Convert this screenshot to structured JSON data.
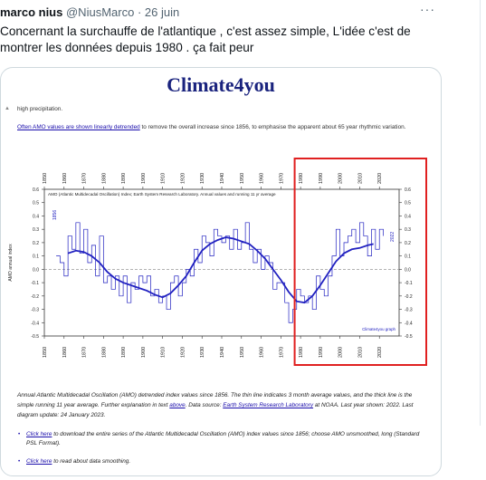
{
  "tweet": {
    "name": "marco nius",
    "handle": "@NiusMarco",
    "separator": "·",
    "date": "26 juin",
    "more": "···",
    "text": "Concernant la surchauffe de l'atlantique , c'est assez simple, L'idée c'est de montrer les données depuis 1980 . ça fait peur"
  },
  "page": {
    "site_title": "Climate4you",
    "collapse_icon": "caret-up-icon",
    "snippet_top": "high precipitation.",
    "snippet_link": "Often AMO values are shown linearly detrended",
    "snippet_rest": " to remove the overall increase since 1856, to emphasise the apparent about 65 year rhythmic variation.",
    "caption_1": "Annual Atlantic Multidecadal Oscillation (AMO) detrended index values since 1856. The thin line indicates 3 month average values, and the thick line is the simple running 11 year average. Further explanation in text ",
    "caption_link_1": "above",
    "caption_2": ". Data source: ",
    "caption_link_2": "Earth System Research Laboratory",
    "caption_3": " at NOAA. Last year shown: 2022. Last diagram update: 24 January 2023.",
    "bullet_1_link": "Click here",
    "bullet_1_text": " to download the entire series of the Atlantic Multidecadal Oscillation (AMO) index values since 1856; choose AMO unsmoothed, long (Standard PSL Format).",
    "bullet_2_link": "Click here",
    "bullet_2_text": " to read about data smoothing."
  },
  "chart_data": {
    "type": "line",
    "title": "AMO (Atlantic Multidecadal Oscillation) Index; Earth System Research Laboratory. Annual values and running 11 yr average",
    "ylabel": "AMO annual index",
    "xlim": [
      1850,
      2030
    ],
    "ylim": [
      -0.5,
      0.6
    ],
    "x_ticks": [
      1850,
      1860,
      1870,
      1880,
      1890,
      1900,
      1910,
      1920,
      1930,
      1940,
      1950,
      1960,
      1970,
      1980,
      1990,
      2000,
      2010,
      2020
    ],
    "y_ticks": [
      -0.5,
      -0.4,
      -0.3,
      -0.2,
      -0.1,
      0.0,
      0.1,
      0.2,
      0.3,
      0.4,
      0.5,
      0.6
    ],
    "y_tick_labels": [
      "-0.5",
      "-0.4",
      "-0.3",
      "-0.2",
      "-0.1",
      "0.0",
      "0.1",
      "0.2",
      "0.3",
      "0.4",
      "0.5",
      "0.6"
    ],
    "label_start": "1856",
    "label_end": "2022",
    "watermark": "Climate4you graph",
    "colors": {
      "series": "#2020c0",
      "highlight": "#e02020",
      "grid": "#999999"
    },
    "highlight_range": [
      1977,
      2030
    ],
    "series": [
      {
        "name": "Annual values",
        "x": [
          1856,
          1858,
          1860,
          1862,
          1864,
          1866,
          1868,
          1870,
          1872,
          1874,
          1876,
          1878,
          1880,
          1882,
          1884,
          1886,
          1888,
          1890,
          1892,
          1894,
          1896,
          1898,
          1900,
          1902,
          1904,
          1906,
          1908,
          1910,
          1912,
          1914,
          1916,
          1918,
          1920,
          1922,
          1924,
          1926,
          1928,
          1930,
          1932,
          1934,
          1936,
          1938,
          1940,
          1942,
          1944,
          1946,
          1948,
          1950,
          1952,
          1954,
          1956,
          1958,
          1960,
          1962,
          1964,
          1966,
          1968,
          1970,
          1972,
          1974,
          1976,
          1978,
          1980,
          1982,
          1984,
          1986,
          1988,
          1990,
          1992,
          1994,
          1996,
          1998,
          2000,
          2002,
          2004,
          2006,
          2008,
          2010,
          2012,
          2014,
          2016,
          2018,
          2020,
          2022
        ],
        "y": [
          0.1,
          0.05,
          -0.05,
          0.25,
          0.15,
          0.35,
          0.12,
          0.3,
          0.05,
          0.18,
          -0.05,
          0.25,
          -0.1,
          -0.05,
          -0.15,
          -0.05,
          -0.2,
          -0.05,
          -0.25,
          -0.1,
          -0.15,
          -0.05,
          -0.1,
          -0.05,
          -0.2,
          -0.15,
          -0.25,
          -0.2,
          -0.3,
          -0.1,
          -0.05,
          -0.2,
          -0.1,
          0.0,
          -0.05,
          0.15,
          0.05,
          0.25,
          0.2,
          0.1,
          0.3,
          0.25,
          0.2,
          0.25,
          0.15,
          0.3,
          0.15,
          0.2,
          0.35,
          0.15,
          0.05,
          0.15,
          0.0,
          0.1,
          0.05,
          -0.15,
          -0.1,
          -0.1,
          -0.25,
          -0.4,
          -0.3,
          -0.15,
          -0.2,
          -0.25,
          -0.2,
          -0.3,
          -0.05,
          -0.15,
          -0.2,
          -0.05,
          0.1,
          0.3,
          0.1,
          0.2,
          0.25,
          0.3,
          0.2,
          0.35,
          0.25,
          0.1,
          0.3,
          0.15,
          0.3,
          0.25
        ]
      },
      {
        "name": "Running 11 yr average",
        "x": [
          1862,
          1866,
          1870,
          1874,
          1878,
          1882,
          1886,
          1890,
          1894,
          1898,
          1902,
          1906,
          1910,
          1914,
          1918,
          1922,
          1926,
          1930,
          1934,
          1938,
          1942,
          1946,
          1950,
          1954,
          1958,
          1962,
          1966,
          1970,
          1974,
          1978,
          1982,
          1986,
          1990,
          1994,
          1998,
          2002,
          2006,
          2010,
          2014,
          2017
        ],
        "y": [
          0.12,
          0.14,
          0.13,
          0.1,
          0.05,
          -0.02,
          -0.07,
          -0.1,
          -0.12,
          -0.14,
          -0.16,
          -0.19,
          -0.21,
          -0.18,
          -0.12,
          -0.05,
          0.05,
          0.14,
          0.19,
          0.22,
          0.24,
          0.23,
          0.21,
          0.19,
          0.14,
          0.08,
          0.0,
          -0.08,
          -0.17,
          -0.24,
          -0.25,
          -0.2,
          -0.12,
          -0.03,
          0.06,
          0.12,
          0.15,
          0.16,
          0.18,
          0.19
        ]
      }
    ]
  }
}
